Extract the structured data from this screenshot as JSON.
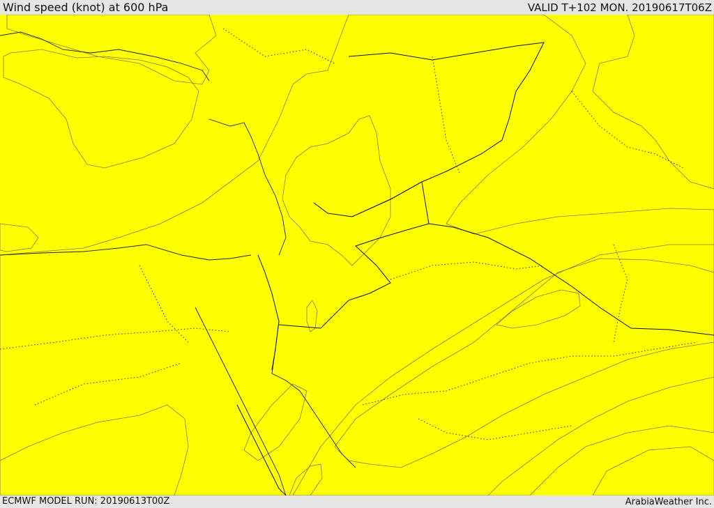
{
  "header": {
    "title": "Wind speed (knot) at 600 hPa",
    "valid": "VALID T+102 MON. 20190617T06Z"
  },
  "footer": {
    "model_run": "ECMWF MODEL RUN: 20190613T00Z",
    "credit": "ArabiaWeather Inc."
  },
  "map": {
    "colors": {
      "sea_white": "#ffffff",
      "band_lightest": "#ffdca0",
      "band_yellow": "#ffff00",
      "band_gold": "#ffdd00",
      "band_amber": "#ffc000",
      "band_orange": "#ffa000",
      "band_dark_orange": "#ff8000"
    }
  }
}
